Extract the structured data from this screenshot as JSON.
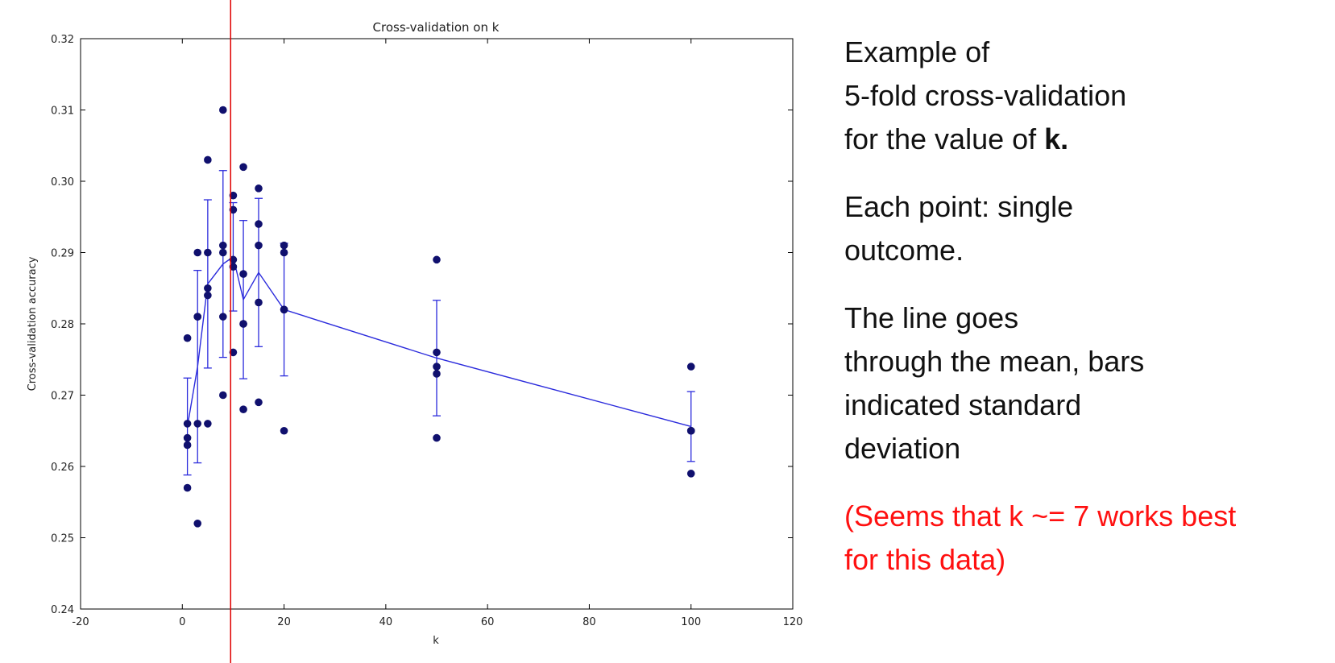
{
  "chart_data": {
    "type": "scatter",
    "title": "Cross-validation on k",
    "xlabel": "k",
    "ylabel": "Cross-validation accuracy",
    "xlim": [
      -20,
      120
    ],
    "ylim": [
      0.24,
      0.32
    ],
    "xticks": [
      -20,
      0,
      20,
      40,
      60,
      80,
      100,
      120
    ],
    "yticks": [
      0.24,
      0.25,
      0.26,
      0.27,
      0.28,
      0.29,
      0.3,
      0.31,
      0.32
    ],
    "grid": false,
    "points": [
      {
        "k": 1,
        "values": [
          0.278,
          0.266,
          0.264,
          0.263,
          0.257
        ]
      },
      {
        "k": 3,
        "values": [
          0.29,
          0.281,
          0.281,
          0.266,
          0.252
        ]
      },
      {
        "k": 5,
        "values": [
          0.303,
          0.29,
          0.285,
          0.284,
          0.266
        ]
      },
      {
        "k": 8,
        "values": [
          0.31,
          0.291,
          0.29,
          0.281,
          0.27
        ]
      },
      {
        "k": 10,
        "values": [
          0.298,
          0.296,
          0.289,
          0.288,
          0.276
        ]
      },
      {
        "k": 12,
        "values": [
          0.302,
          0.287,
          0.28,
          0.28,
          0.268
        ]
      },
      {
        "k": 15,
        "values": [
          0.299,
          0.294,
          0.291,
          0.283,
          0.269
        ]
      },
      {
        "k": 20,
        "values": [
          0.291,
          0.29,
          0.282,
          0.282,
          0.265
        ]
      },
      {
        "k": 50,
        "values": [
          0.289,
          0.276,
          0.274,
          0.273,
          0.264
        ]
      },
      {
        "k": 100,
        "values": [
          0.274,
          0.265,
          0.265,
          0.265,
          0.259
        ]
      }
    ],
    "mean_line": {
      "k": [
        1,
        3,
        5,
        8,
        10,
        12,
        15,
        20,
        50,
        100
      ],
      "mean": [
        0.2656,
        0.274,
        0.2856,
        0.2884,
        0.2894,
        0.2834,
        0.2872,
        0.282,
        0.2752,
        0.2656
      ],
      "std": [
        0.0068,
        0.0135,
        0.0118,
        0.0131,
        0.0076,
        0.0111,
        0.0104,
        0.0093,
        0.0081,
        0.0049
      ]
    },
    "marker_line_k": 9.5,
    "colors": {
      "points": "#10106e",
      "mean_line": "#2b2bdc",
      "marker_line": "#e00000",
      "axes": "#000000"
    }
  },
  "notes": {
    "paragraph1": {
      "line1": "Example of",
      "line2": "5-fold cross-validation",
      "line3_prefix": "for the value of ",
      "line3_bold": "k."
    },
    "paragraph2": {
      "line1": "Each point: single",
      "line2": "outcome."
    },
    "paragraph3": {
      "line1": "The line goes",
      "line2": "through the mean, bars",
      "line3": "indicated standard",
      "line4": "deviation"
    },
    "paragraph4": {
      "line1": "(Seems that k ~= 7 works best",
      "line2": "for this data)"
    }
  }
}
